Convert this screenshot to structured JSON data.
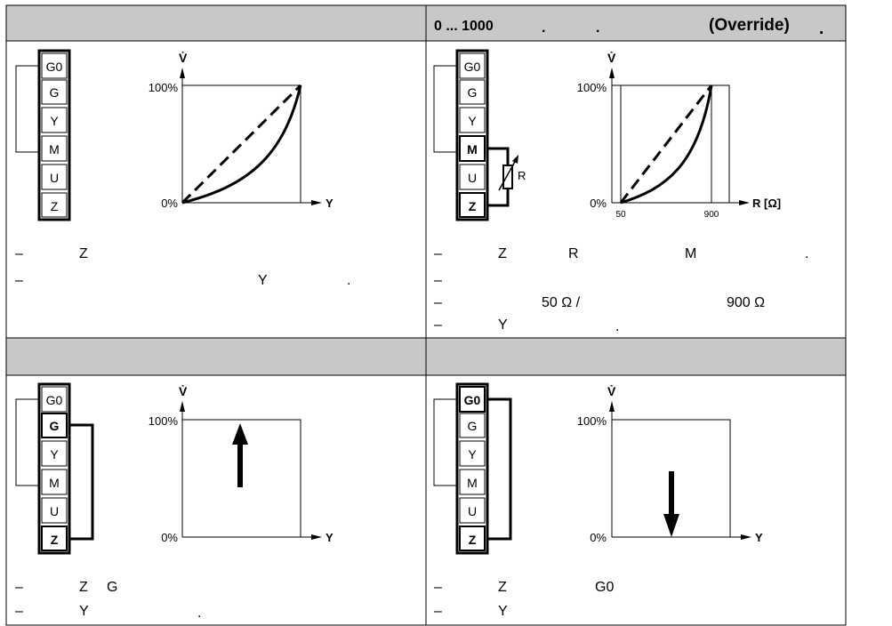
{
  "header_right": {
    "range": "0 ... 1000",
    "dot_a": ".",
    "dot_b": ".",
    "override": "(Override)",
    "dot_c": "."
  },
  "terminals": {
    "g0": "G0",
    "g": "G",
    "y": "Y",
    "m": "M",
    "u": "U",
    "z": "Z"
  },
  "axis": {
    "vdot": "V̇",
    "pct_100": "100%",
    "pct_0": "0%",
    "y": "Y",
    "r_ohm": "R [Ω]",
    "tick_50": "50",
    "tick_900": "900",
    "resistor_r": "R"
  },
  "panel_tl": {
    "line1": {
      "dash": "–",
      "z": "Z"
    },
    "line2": {
      "dash": "–",
      "y": "Y",
      "dot": "."
    }
  },
  "panel_tr": {
    "line1": {
      "dash": "–",
      "z": "Z",
      "r": "R",
      "m": "M",
      "dot": "."
    },
    "line2": {
      "dash": "–"
    },
    "line3": {
      "dash": "–",
      "ohm50": "50 Ω /",
      "ohm900": "900 Ω"
    },
    "line4": {
      "dash": "–",
      "y": "Y",
      "dot": "."
    }
  },
  "panel_bl": {
    "line1": {
      "dash": "–",
      "z": "Z",
      "g": "G"
    },
    "line2": {
      "dash": "–",
      "y": "Y",
      "dot": "."
    }
  },
  "panel_br": {
    "line1": {
      "dash": "–",
      "z": "Z",
      "g0": "G0"
    },
    "line2": {
      "dash": "–",
      "y": "Y"
    }
  },
  "colors": {
    "header_fill": "#c8c8c8",
    "line": "#000000",
    "background": "#ffffff"
  }
}
